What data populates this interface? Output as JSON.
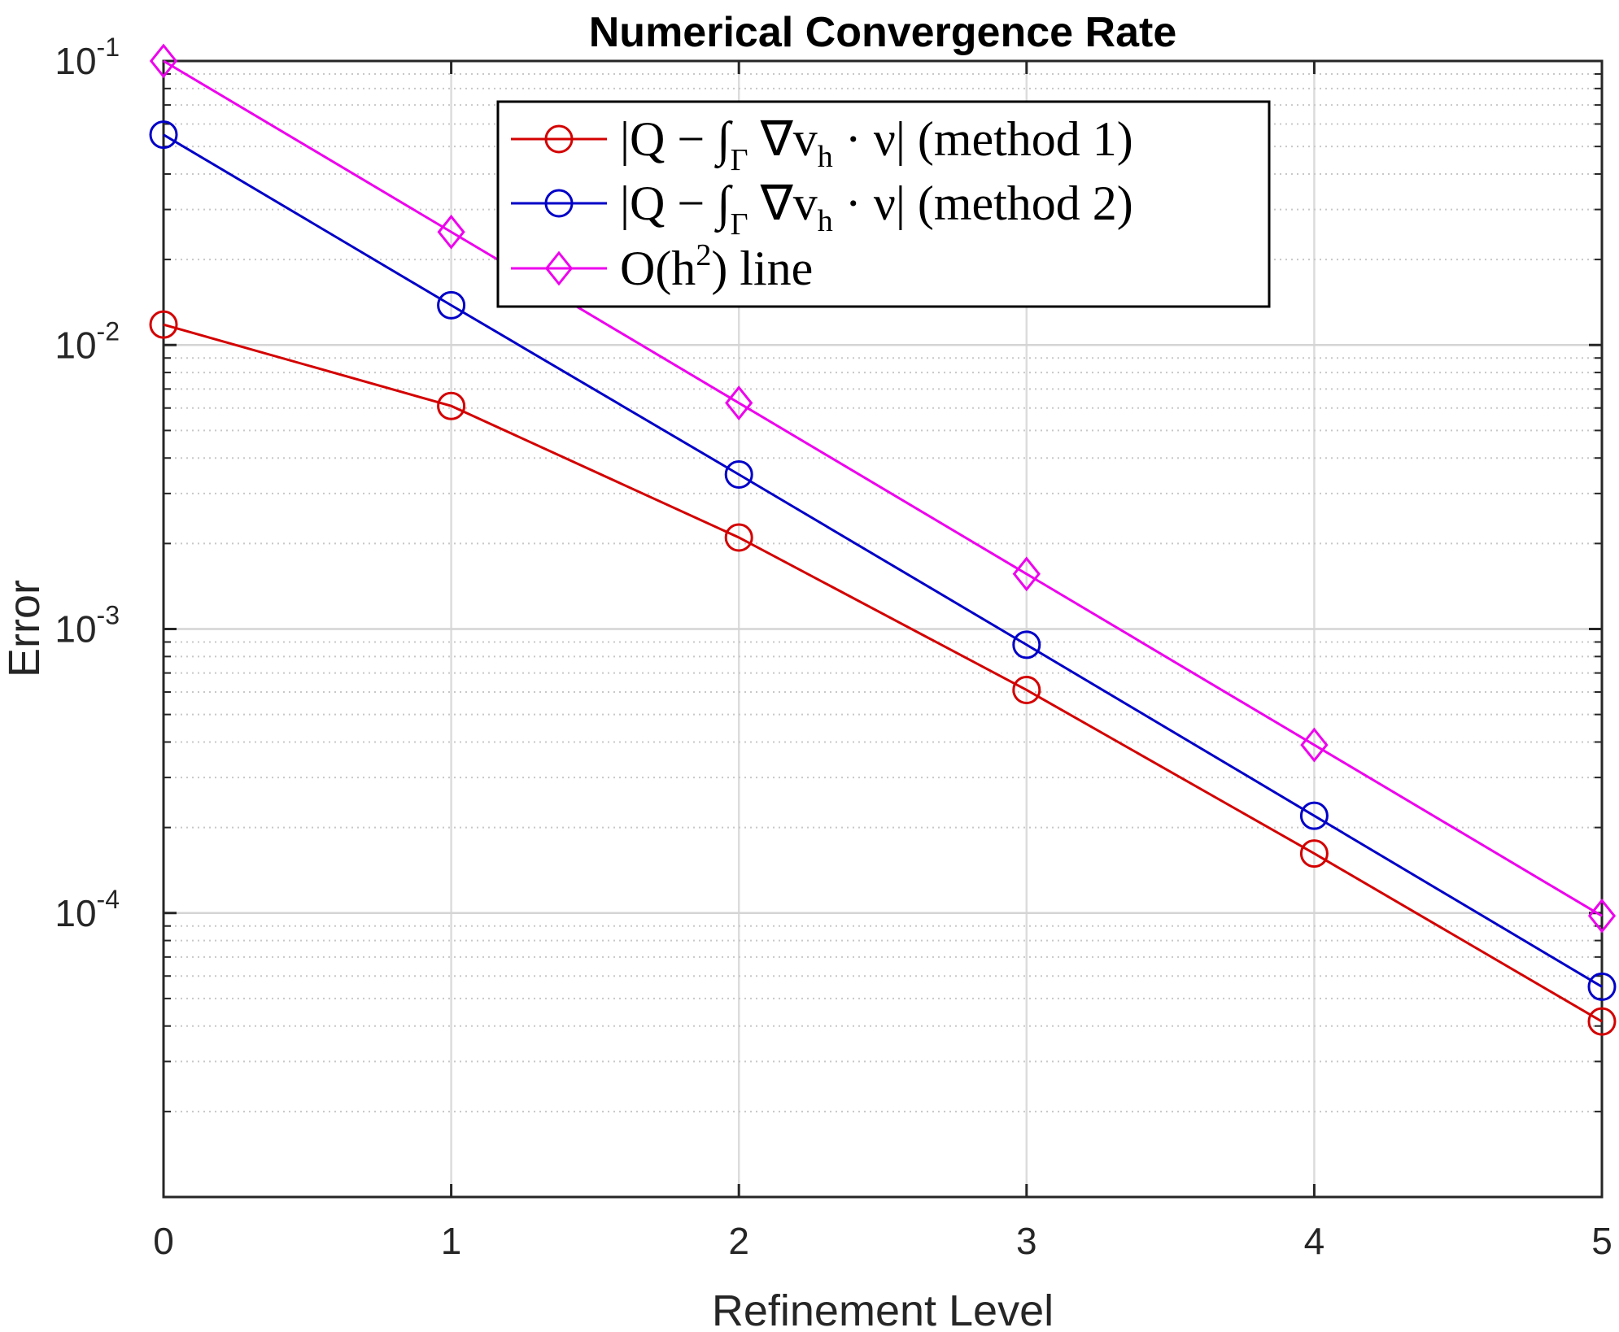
{
  "chart_data": {
    "type": "line",
    "title": "Numerical Convergence Rate",
    "xlabel": "Refinement Level",
    "ylabel": "Error",
    "yscale": "log",
    "xlim": [
      0,
      5
    ],
    "ylim": [
      1e-05,
      0.1
    ],
    "xticks": [
      "0",
      "1",
      "2",
      "3",
      "4",
      "5"
    ],
    "yticks": [
      {
        "value": 0.1,
        "base": "10",
        "exp": "-1"
      },
      {
        "value": 0.01,
        "base": "10",
        "exp": "-2"
      },
      {
        "value": 0.001,
        "base": "10",
        "exp": "-3"
      },
      {
        "value": 0.0001,
        "base": "10",
        "exp": "-4"
      }
    ],
    "grid": true,
    "legend_position": "top-center",
    "x": [
      0,
      1,
      2,
      3,
      4,
      5
    ],
    "series": [
      {
        "legend": {
          "lhs": "|Q − ∫",
          "sub": "Γ",
          "mid": " ∇v",
          "sub2": "h",
          "rhs": " · ν| (method 1)"
        },
        "color": "#d40000",
        "marker": "circle",
        "values": [
          0.0118,
          0.0061,
          0.0021,
          0.00061,
          0.000162,
          4.15e-05
        ]
      },
      {
        "legend": {
          "lhs": "|Q − ∫",
          "sub": "Γ",
          "mid": " ∇v",
          "sub2": "h",
          "rhs": " · ν| (method 2)"
        },
        "color": "#0000c8",
        "marker": "circle",
        "values": [
          0.055,
          0.0138,
          0.0035,
          0.00088,
          0.00022,
          5.5e-05
        ]
      },
      {
        "legend": {
          "lhs": "O(h",
          "sup": "2",
          "rhs": ") line"
        },
        "color": "#ee00ee",
        "marker": "diamond",
        "values": [
          0.1,
          0.025,
          0.00625,
          0.0015625,
          0.000390625,
          9.77e-05
        ]
      }
    ]
  }
}
